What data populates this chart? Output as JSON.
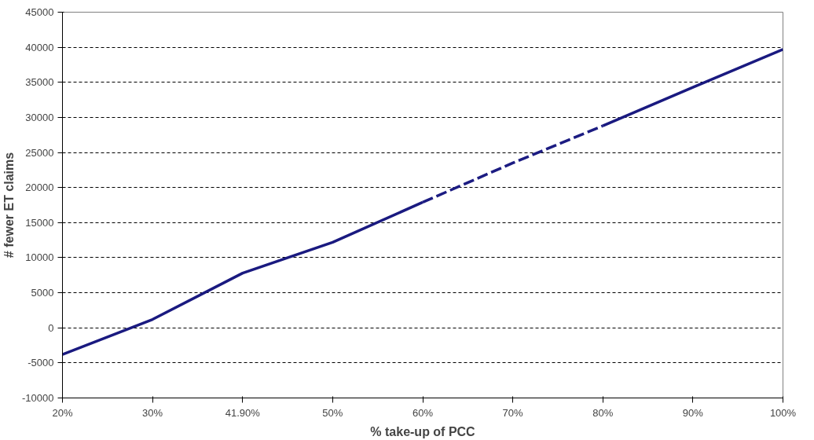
{
  "chart_data": {
    "type": "line",
    "xlabel": "% take-up of PCC",
    "ylabel": "# fewer ET claims",
    "categories": [
      "20%",
      "30%",
      "41.90%",
      "50%",
      "60%",
      "70%",
      "80%",
      "90%",
      "100%"
    ],
    "series": [
      {
        "color": "#1a1a80",
        "line_style": "solid",
        "values": [
          -3800,
          1200,
          7800,
          12200,
          17900,
          null,
          28800,
          34300,
          39700
        ]
      },
      {
        "color": "#1c1c82",
        "line_style": "dashed",
        "values": [
          null,
          null,
          null,
          null,
          17900,
          23500,
          28800,
          null,
          null
        ]
      }
    ],
    "ylim": [
      -10000,
      45000
    ],
    "yticks": [
      -10000,
      -5000,
      0,
      5000,
      10000,
      15000,
      20000,
      25000,
      30000,
      35000,
      40000,
      45000
    ],
    "grid": "y",
    "marker": "none"
  }
}
